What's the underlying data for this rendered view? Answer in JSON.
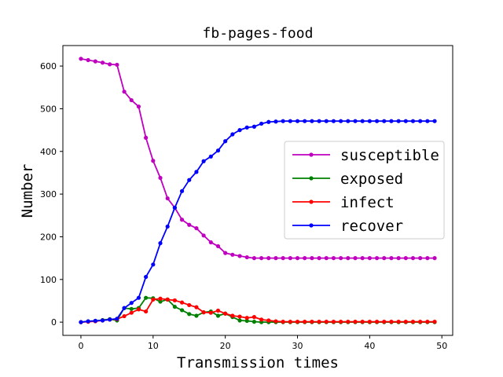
{
  "chart_data": {
    "type": "line",
    "title": "fb-pages-food",
    "xlabel": "Transmission times",
    "ylabel": "Number",
    "xlim": [
      -2.5,
      51.5
    ],
    "ylim": [
      -31,
      648
    ],
    "xticks": [
      0,
      10,
      20,
      30,
      40,
      50
    ],
    "yticks": [
      0,
      100,
      200,
      300,
      400,
      500,
      600
    ],
    "legend": "center-right",
    "grid": false,
    "x": [
      0,
      1,
      2,
      3,
      4,
      5,
      6,
      7,
      8,
      9,
      10,
      11,
      12,
      13,
      14,
      15,
      16,
      17,
      18,
      19,
      20,
      21,
      22,
      23,
      24,
      25,
      26,
      27,
      28,
      29,
      30,
      31,
      32,
      33,
      34,
      35,
      36,
      37,
      38,
      39,
      40,
      41,
      42,
      43,
      44,
      45,
      46,
      47,
      48,
      49
    ],
    "series": [
      {
        "name": "susceptible",
        "color": "#bf00bf",
        "values": [
          617,
          614,
          611,
          608,
          604,
          603,
          540,
          520,
          505,
          432,
          378,
          338,
          290,
          268,
          240,
          228,
          220,
          203,
          187,
          178,
          162,
          158,
          155,
          152,
          150,
          150,
          150,
          150,
          150,
          150,
          150,
          150,
          150,
          150,
          150,
          150,
          150,
          150,
          150,
          150,
          150,
          150,
          150,
          150,
          150,
          150,
          150,
          150,
          150,
          150
        ]
      },
      {
        "name": "exposed",
        "color": "#008000",
        "values": [
          0,
          2,
          3,
          5,
          7,
          4,
          33,
          31,
          33,
          57,
          56,
          48,
          53,
          36,
          28,
          19,
          15,
          23,
          25,
          15,
          20,
          12,
          4,
          3,
          1,
          0,
          0,
          0,
          0,
          0,
          0,
          0,
          0,
          0,
          0,
          0,
          0,
          0,
          0,
          0,
          0,
          0,
          0,
          0,
          0,
          0,
          0,
          0,
          0,
          0
        ]
      },
      {
        "name": "infect",
        "color": "#ff0000",
        "values": [
          0,
          1,
          2,
          4,
          6,
          7,
          14,
          22,
          30,
          25,
          53,
          55,
          53,
          51,
          46,
          40,
          35,
          23,
          22,
          27,
          20,
          15,
          13,
          10,
          12,
          6,
          4,
          2,
          1,
          1,
          1,
          1,
          1,
          1,
          1,
          1,
          1,
          1,
          1,
          1,
          1,
          1,
          1,
          1,
          1,
          1,
          1,
          1,
          1,
          1
        ]
      },
      {
        "name": "recover",
        "color": "#0000ff",
        "values": [
          0,
          2,
          3,
          4,
          6,
          8,
          33,
          45,
          57,
          106,
          135,
          185,
          224,
          268,
          307,
          333,
          352,
          377,
          388,
          402,
          424,
          440,
          450,
          456,
          458,
          465,
          469,
          470,
          471,
          471,
          471,
          471,
          471,
          471,
          471,
          471,
          471,
          471,
          471,
          471,
          471,
          471,
          471,
          471,
          471,
          471,
          471,
          471,
          471,
          471
        ]
      }
    ]
  }
}
